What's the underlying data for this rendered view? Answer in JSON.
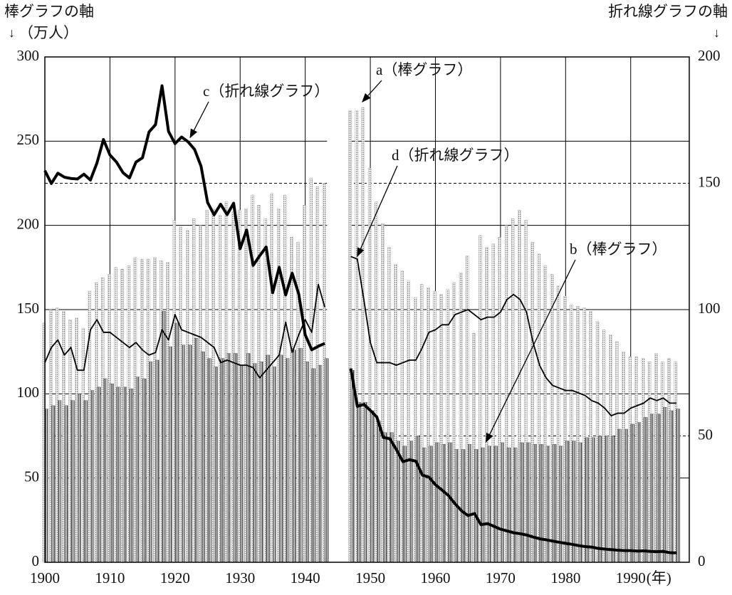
{
  "chart_data": {
    "type": "bar_line",
    "left_axis_label": "棒グラフの軸",
    "left_axis_unit": "（万人）",
    "right_axis_label": "折れ線グラフの軸",
    "x_unit": "(年)",
    "x": [
      1900,
      1901,
      1902,
      1903,
      1904,
      1905,
      1906,
      1907,
      1908,
      1909,
      1910,
      1911,
      1912,
      1913,
      1914,
      1915,
      1916,
      1917,
      1918,
      1919,
      1920,
      1921,
      1922,
      1923,
      1924,
      1925,
      1926,
      1927,
      1928,
      1929,
      1930,
      1931,
      1932,
      1933,
      1934,
      1935,
      1936,
      1937,
      1938,
      1939,
      1940,
      1941,
      1942,
      1943,
      1944,
      1945,
      1946,
      1947,
      1948,
      1949,
      1950,
      1951,
      1952,
      1953,
      1954,
      1955,
      1956,
      1957,
      1958,
      1959,
      1960,
      1961,
      1962,
      1963,
      1964,
      1965,
      1966,
      1967,
      1968,
      1969,
      1970,
      1971,
      1972,
      1973,
      1974,
      1975,
      1976,
      1977,
      1978,
      1979,
      1980,
      1981,
      1982,
      1983,
      1984,
      1985,
      1986,
      1987,
      1988,
      1989,
      1990,
      1991,
      1992,
      1993,
      1994,
      1995,
      1996,
      1997
    ],
    "xlim": [
      1900,
      1999
    ],
    "xticks": [
      1900,
      1910,
      1920,
      1930,
      1940,
      1950,
      1960,
      1970,
      1980,
      1990
    ],
    "ylim": [
      0,
      300
    ],
    "yticks": [
      0,
      50,
      100,
      150,
      200,
      250,
      300
    ],
    "y2lim": [
      0,
      200
    ],
    "y2ticks": [
      0,
      50,
      100,
      150,
      200
    ],
    "grid": true,
    "series": [
      {
        "name": "a（棒グラフ）",
        "kind": "bar",
        "color": "#9a9a9a",
        "values": [
          142,
          150,
          151,
          149,
          144,
          145,
          139,
          161,
          166,
          169,
          171,
          175,
          174,
          176,
          181,
          180,
          180,
          181,
          179,
          178,
          203,
          199,
          197,
          204,
          200,
          209,
          210,
          206,
          214,
          208,
          209,
          210,
          218,
          212,
          204,
          219,
          210,
          218,
          193,
          190,
          212,
          228,
          223,
          225,
          null,
          null,
          null,
          268,
          268,
          270,
          234,
          214,
          201,
          187,
          177,
          173,
          167,
          157,
          165,
          163,
          161,
          159,
          162,
          166,
          172,
          182,
          136,
          194,
          187,
          189,
          193,
          200,
          204,
          209,
          203,
          190,
          183,
          176,
          171,
          164,
          158,
          153,
          152,
          151,
          149,
          143,
          138,
          135,
          131,
          125,
          122,
          122,
          121,
          119,
          124,
          119,
          121,
          119
        ]
      },
      {
        "name": "b（棒グラフ）",
        "kind": "bar",
        "color": "#3a3a3a",
        "values": [
          91,
          93,
          96,
          93,
          96,
          100,
          96,
          102,
          104,
          109,
          106,
          104,
          104,
          103,
          110,
          109,
          119,
          120,
          149,
          128,
          142,
          129,
          129,
          133,
          125,
          121,
          116,
          121,
          124,
          124,
          117,
          124,
          118,
          119,
          123,
          116,
          123,
          121,
          126,
          127,
          119,
          115,
          117,
          121,
          null,
          null,
          null,
          114,
          95,
          95,
          90,
          84,
          77,
          77,
          72,
          69,
          72,
          75,
          68,
          69,
          71,
          70,
          71,
          67,
          67,
          70,
          67,
          68,
          69,
          69,
          71,
          68,
          68,
          71,
          71,
          70,
          70,
          69,
          70,
          69,
          72,
          72,
          71,
          74,
          74,
          75,
          75,
          75,
          79,
          79,
          82,
          83,
          86,
          88,
          88,
          92,
          90,
          91
        ]
      },
      {
        "name": "c（折れ線グラフ）",
        "kind": "line",
        "axis": "y2",
        "color": "#000000",
        "width": 4,
        "values": [
          155,
          149.9,
          154,
          152.4,
          151.9,
          151.7,
          153.6,
          151.3,
          158,
          167.3,
          161.2,
          158.4,
          154.2,
          152.1,
          158.4,
          160.1,
          170.3,
          173.2,
          188.6,
          170.5,
          165.7,
          168.3,
          166.4,
          163.4,
          156.7,
          142.4,
          137.5,
          141.7,
          137.6,
          142.1,
          124.1,
          131.5,
          117.5,
          121.3,
          124.8,
          106.7,
          116.7,
          105.8,
          114.4,
          106.2,
          90,
          84.1,
          85.5,
          86.6,
          null,
          null,
          null,
          76.7,
          61.7,
          62.5,
          60.1,
          57.5,
          49.4,
          48.9,
          44.6,
          39.8,
          40.6,
          40,
          34.5,
          33.7,
          30.7,
          28.6,
          26.4,
          23.2,
          20.4,
          18.5,
          19.3,
          14.9,
          15.3,
          14.2,
          13.1,
          12.4,
          11.7,
          11.3,
          10.8,
          10,
          9.3,
          8.9,
          8.4,
          7.9,
          7.5,
          7.1,
          6.6,
          6.2,
          6,
          5.5,
          5.2,
          5,
          4.8,
          4.6,
          4.6,
          4.4,
          4.5,
          4.3,
          4.2,
          4.3,
          3.8,
          3.7
        ]
      },
      {
        "name": "d（折れ線グラフ）",
        "kind": "line",
        "axis": "y2",
        "color": "#000000",
        "width": 1.8,
        "values": [
          79,
          85,
          88,
          82,
          85,
          76,
          76,
          92,
          96,
          91,
          91,
          89,
          87,
          85,
          87,
          84,
          82,
          83,
          92,
          88,
          98,
          92,
          91,
          90,
          89,
          87,
          85,
          79,
          80,
          79,
          78,
          78,
          77,
          73,
          76,
          79,
          82,
          95,
          83,
          90,
          96,
          91,
          110,
          101,
          null,
          null,
          null,
          121,
          120,
          104,
          87,
          79,
          79,
          79,
          78,
          79,
          80,
          80,
          85,
          91,
          92,
          94,
          94,
          98,
          99,
          100,
          98,
          96,
          97,
          97,
          99,
          104,
          106,
          104,
          99,
          87,
          78,
          73,
          70,
          69,
          68,
          68,
          67,
          66,
          64,
          63,
          61,
          58,
          59,
          59,
          61,
          62,
          63,
          65,
          64,
          65,
          63,
          63
        ]
      }
    ]
  }
}
